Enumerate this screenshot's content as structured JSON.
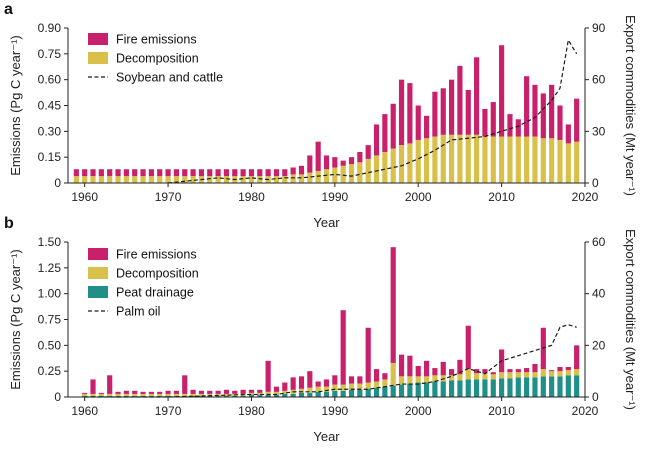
{
  "colors": {
    "fire": "#c8206b",
    "decomposition": "#d8c04a",
    "peat": "#1f8f88",
    "line": "#1a1a1a",
    "axis": "#222222"
  },
  "chart_data": [
    {
      "panel": "a",
      "type": "bar",
      "stacked": true,
      "x": [
        1959,
        1960,
        1961,
        1962,
        1963,
        1964,
        1965,
        1966,
        1967,
        1968,
        1969,
        1970,
        1971,
        1972,
        1973,
        1974,
        1975,
        1976,
        1977,
        1978,
        1979,
        1980,
        1981,
        1982,
        1983,
        1984,
        1985,
        1986,
        1987,
        1988,
        1989,
        1990,
        1991,
        1992,
        1993,
        1994,
        1995,
        1996,
        1997,
        1998,
        1999,
        2000,
        2001,
        2002,
        2003,
        2004,
        2005,
        2006,
        2007,
        2008,
        2009,
        2010,
        2011,
        2012,
        2013,
        2014,
        2015,
        2016,
        2017,
        2018,
        2019
      ],
      "series": [
        {
          "name": "Decomposition",
          "values": [
            0.04,
            0.04,
            0.04,
            0.04,
            0.04,
            0.04,
            0.04,
            0.04,
            0.04,
            0.04,
            0.04,
            0.04,
            0.04,
            0.04,
            0.04,
            0.04,
            0.04,
            0.04,
            0.04,
            0.04,
            0.04,
            0.04,
            0.04,
            0.04,
            0.04,
            0.04,
            0.05,
            0.05,
            0.06,
            0.07,
            0.08,
            0.09,
            0.1,
            0.11,
            0.12,
            0.14,
            0.16,
            0.18,
            0.2,
            0.22,
            0.23,
            0.25,
            0.26,
            0.27,
            0.28,
            0.28,
            0.28,
            0.28,
            0.28,
            0.27,
            0.27,
            0.27,
            0.27,
            0.27,
            0.27,
            0.27,
            0.26,
            0.26,
            0.25,
            0.23,
            0.24
          ]
        },
        {
          "name": "Fire emissions",
          "values": [
            0.04,
            0.04,
            0.04,
            0.04,
            0.04,
            0.04,
            0.04,
            0.04,
            0.04,
            0.04,
            0.04,
            0.04,
            0.04,
            0.04,
            0.04,
            0.04,
            0.04,
            0.04,
            0.04,
            0.04,
            0.04,
            0.04,
            0.04,
            0.04,
            0.04,
            0.04,
            0.04,
            0.05,
            0.1,
            0.17,
            0.08,
            0.06,
            0.03,
            0.04,
            0.06,
            0.08,
            0.18,
            0.22,
            0.26,
            0.38,
            0.35,
            0.2,
            0.13,
            0.26,
            0.27,
            0.32,
            0.4,
            0.26,
            0.45,
            0.16,
            0.2,
            0.53,
            0.13,
            0.1,
            0.35,
            0.3,
            0.26,
            0.31,
            0.2,
            0.11,
            0.25
          ]
        }
      ],
      "line": {
        "name": "Soybean and cattle",
        "x": [
          1970,
          1972,
          1974,
          1976,
          1978,
          1980,
          1982,
          1984,
          1986,
          1988,
          1990,
          1992,
          1994,
          1996,
          1998,
          2000,
          2002,
          2004,
          2006,
          2008,
          2010,
          2012,
          2014,
          2016,
          2017,
          2018,
          2019
        ],
        "values": [
          0,
          1,
          2,
          3,
          2,
          3,
          2,
          3,
          3,
          4,
          5,
          4,
          6,
          8,
          10,
          14,
          19,
          25,
          26,
          27,
          30,
          33,
          38,
          48,
          55,
          83,
          75
        ]
      },
      "xlabel": "Year",
      "ylabel": "Emissions (Pg C year⁻¹)",
      "y2label": "Export commodities (Mt year⁻¹)",
      "ylim": [
        0,
        0.9
      ],
      "yticks": [
        "0",
        "0.15",
        "0.30",
        "0.45",
        "0.60",
        "0.75",
        "0.90"
      ],
      "y2lim": [
        0,
        90
      ],
      "y2ticks": [
        "0",
        "30",
        "60",
        "90"
      ],
      "xlim": [
        1958,
        2020
      ],
      "xticks": [
        "1960",
        "1970",
        "1980",
        "1990",
        "2000",
        "2010",
        "2020"
      ],
      "legend": [
        "Fire emissions",
        "Decomposition",
        "Soybean and cattle"
      ],
      "legend_position": "top-left",
      "grid": false
    },
    {
      "panel": "b",
      "type": "bar",
      "stacked": true,
      "x": [
        1960,
        1961,
        1962,
        1963,
        1964,
        1965,
        1966,
        1967,
        1968,
        1969,
        1970,
        1971,
        1972,
        1973,
        1974,
        1975,
        1976,
        1977,
        1978,
        1979,
        1980,
        1981,
        1982,
        1983,
        1984,
        1985,
        1986,
        1987,
        1988,
        1989,
        1990,
        1991,
        1992,
        1993,
        1994,
        1995,
        1996,
        1997,
        1998,
        1999,
        2000,
        2001,
        2002,
        2003,
        2004,
        2005,
        2006,
        2007,
        2008,
        2009,
        2010,
        2011,
        2012,
        2013,
        2014,
        2015,
        2016,
        2017,
        2018,
        2019
      ],
      "series": [
        {
          "name": "Peat drainage",
          "values": [
            0.01,
            0.01,
            0.01,
            0.01,
            0.01,
            0.01,
            0.01,
            0.01,
            0.01,
            0.01,
            0.01,
            0.01,
            0.01,
            0.01,
            0.01,
            0.01,
            0.01,
            0.01,
            0.01,
            0.01,
            0.02,
            0.02,
            0.02,
            0.02,
            0.03,
            0.03,
            0.04,
            0.04,
            0.05,
            0.05,
            0.06,
            0.06,
            0.07,
            0.07,
            0.08,
            0.09,
            0.1,
            0.11,
            0.12,
            0.13,
            0.14,
            0.14,
            0.15,
            0.15,
            0.16,
            0.16,
            0.17,
            0.17,
            0.17,
            0.17,
            0.18,
            0.18,
            0.19,
            0.19,
            0.19,
            0.2,
            0.2,
            0.2,
            0.21,
            0.21
          ]
        },
        {
          "name": "Decomposition",
          "values": [
            0.02,
            0.02,
            0.02,
            0.02,
            0.02,
            0.02,
            0.02,
            0.02,
            0.02,
            0.02,
            0.02,
            0.02,
            0.02,
            0.02,
            0.02,
            0.02,
            0.02,
            0.02,
            0.02,
            0.02,
            0.02,
            0.02,
            0.03,
            0.03,
            0.03,
            0.04,
            0.04,
            0.05,
            0.05,
            0.05,
            0.06,
            0.06,
            0.06,
            0.06,
            0.06,
            0.06,
            0.07,
            0.22,
            0.08,
            0.07,
            0.06,
            0.06,
            0.06,
            0.06,
            0.05,
            0.06,
            0.1,
            0.06,
            0.06,
            0.05,
            0.06,
            0.06,
            0.05,
            0.05,
            0.05,
            0.07,
            0.05,
            0.05,
            0.05,
            0.06
          ]
        },
        {
          "name": "Fire emissions",
          "values": [
            0.01,
            0.14,
            0.01,
            0.18,
            0.02,
            0.03,
            0.03,
            0.02,
            0.02,
            0.02,
            0.03,
            0.03,
            0.18,
            0.04,
            0.03,
            0.03,
            0.03,
            0.04,
            0.03,
            0.04,
            0.03,
            0.03,
            0.3,
            0.05,
            0.08,
            0.12,
            0.12,
            0.16,
            0.05,
            0.07,
            0.09,
            0.72,
            0.07,
            0.07,
            0.53,
            0.12,
            0.06,
            1.12,
            0.21,
            0.2,
            0.1,
            0.15,
            0.07,
            0.13,
            0.06,
            0.14,
            0.42,
            0.04,
            0.04,
            0.02,
            0.22,
            0.03,
            0.03,
            0.04,
            0.08,
            0.4,
            0.01,
            0.04,
            0.03,
            0.23
          ]
        }
      ],
      "line": {
        "name": "Palm oil",
        "x": [
          1960,
          1965,
          1970,
          1975,
          1980,
          1983,
          1985,
          1988,
          1990,
          1992,
          1994,
          1996,
          1998,
          2000,
          2002,
          2004,
          2006,
          2008,
          2010,
          2012,
          2014,
          2016,
          2017,
          2018,
          2019
        ],
        "values": [
          0,
          0,
          0,
          0.5,
          1,
          1,
          2,
          2,
          3,
          3,
          3,
          4,
          5,
          5,
          6,
          8,
          11,
          9,
          14,
          16,
          18,
          20,
          27,
          28,
          27
        ]
      },
      "xlabel": "Year",
      "ylabel": "Emissions (Pg C year⁻¹)",
      "y2label": "Export commodities (Mt year⁻¹)",
      "ylim": [
        0,
        1.5
      ],
      "yticks": [
        "0",
        "0.25",
        "0.50",
        "0.75",
        "1.00",
        "1.25",
        "1.50"
      ],
      "y2lim": [
        0,
        60
      ],
      "y2ticks": [
        "0",
        "20",
        "40",
        "60"
      ],
      "xlim": [
        1958,
        2020
      ],
      "xticks": [
        "1960",
        "1970",
        "1980",
        "1990",
        "2000",
        "2010",
        "2020"
      ],
      "legend": [
        "Fire emissions",
        "Decomposition",
        "Peat drainage",
        "Palm oil"
      ],
      "legend_position": "top-left",
      "grid": false
    }
  ]
}
